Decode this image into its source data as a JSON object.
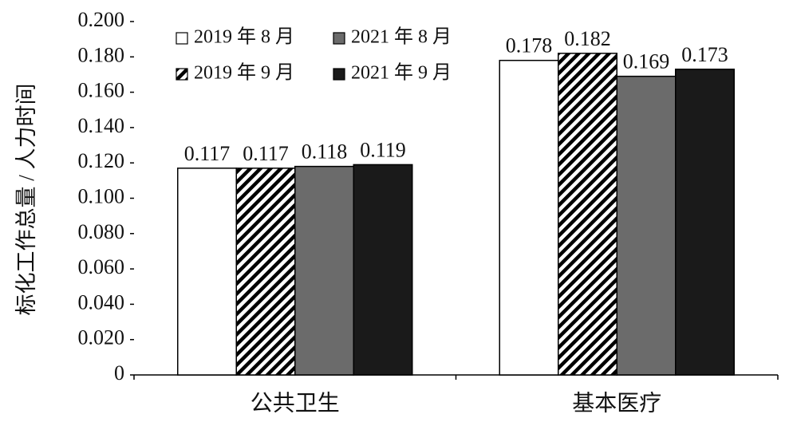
{
  "chart_data": {
    "type": "bar",
    "y_label": "标化工作总量 / 人力时间",
    "categories": [
      "公共卫生",
      "基本医疗"
    ],
    "series": [
      {
        "name": "2019 年 8 月",
        "color": "#ffffff",
        "values": [
          0.117,
          0.178
        ]
      },
      {
        "name": "2019 年 9 月",
        "color": "#000000",
        "hatch": true,
        "values": [
          0.117,
          0.182
        ]
      },
      {
        "name": "2021 年 8 月",
        "color": "#6b6b6b",
        "values": [
          0.118,
          0.169
        ]
      },
      {
        "name": "2021 年 9 月",
        "color": "#1a1a1a",
        "values": [
          0.119,
          0.173
        ]
      }
    ],
    "ylim": [
      0,
      0.2
    ],
    "yticks": [
      0,
      {
        "value": 0.02,
        "label": "0.020"
      },
      {
        "value": 0.04,
        "label": "0.040"
      },
      {
        "value": 0.06,
        "label": "0.060"
      },
      {
        "value": 0.08,
        "label": "0.080"
      },
      {
        "value": 0.1,
        "label": "0.100"
      },
      {
        "value": 0.12,
        "label": "0.120"
      },
      {
        "value": 0.14,
        "label": "0.140"
      },
      {
        "value": 0.16,
        "label": "0.160"
      },
      {
        "value": 0.18,
        "label": "0.180"
      },
      {
        "value": 0.2,
        "label": "0.200"
      }
    ],
    "grid": false
  }
}
